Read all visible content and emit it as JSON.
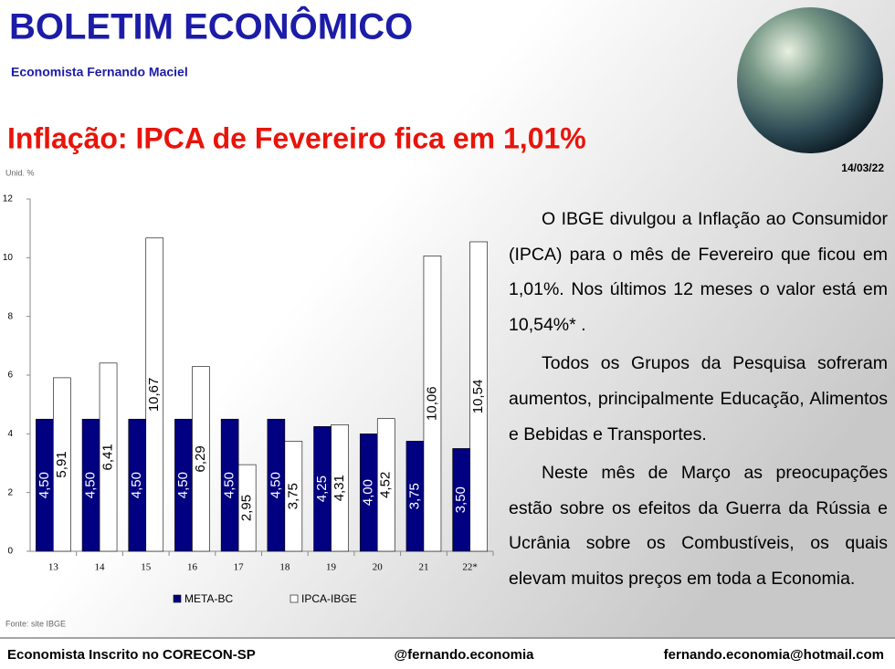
{
  "header": {
    "title": "BOLETIM ECONÔMICO",
    "subtitle": "Economista Fernando Maciel",
    "headline": "Inflação: IPCA de Fevereiro fica em 1,01%",
    "date": "14/03/22"
  },
  "article": {
    "paragraphs": [
      "O IBGE divulgou a Inflação ao Consumidor (IPCA) para o mês de Fevereiro que ficou em 1,01%. Nos últimos 12 meses o valor está em 10,54%* .",
      "Todos os Grupos da Pesquisa sofreram aumentos, principalmente Educação, Alimentos e Bebidas e Transportes.",
      "Neste mês de Março as preocupações estão sobre os efeitos da Guerra da Rússia e Ucrânia sobre os Combustíveis, os quais elevam muitos preços em toda a Economia."
    ]
  },
  "footer": {
    "left": "Economista Inscrito no CORECON-SP",
    "center": "@fernando.economia",
    "right": "fernando.economia@hotmail.com"
  },
  "chart_data": {
    "type": "bar",
    "unit_label": "Unid. %",
    "source": "Fonte: site IBGE",
    "categories": [
      "13",
      "14",
      "15",
      "16",
      "17",
      "18",
      "19",
      "20",
      "21",
      "22*"
    ],
    "series": [
      {
        "name": "META-BC",
        "color": "#000080",
        "values": [
          4.5,
          4.5,
          4.5,
          4.5,
          4.5,
          4.5,
          4.25,
          4,
          3.75,
          3.5
        ],
        "value_labels": [
          "4,50",
          "4,50",
          "4,50",
          "4,50",
          "4,50",
          "4,50",
          "4,25",
          "4,00",
          "3,75",
          "3,50"
        ]
      },
      {
        "name": "IPCA-IBGE",
        "color": "#ffffff",
        "values": [
          5.91,
          6.41,
          10.67,
          6.29,
          2.95,
          3.75,
          4.31,
          4.52,
          10.06,
          10.54
        ],
        "value_labels": [
          "5,91",
          "6,41",
          "10,67",
          "6,29",
          "2,95",
          "3,75",
          "4,31",
          "4,52",
          "10,06",
          "10,54"
        ]
      }
    ],
    "ylim": [
      0,
      12
    ],
    "yticks": [
      0,
      2,
      4,
      6,
      8,
      10,
      12
    ],
    "legend": "bottom"
  }
}
